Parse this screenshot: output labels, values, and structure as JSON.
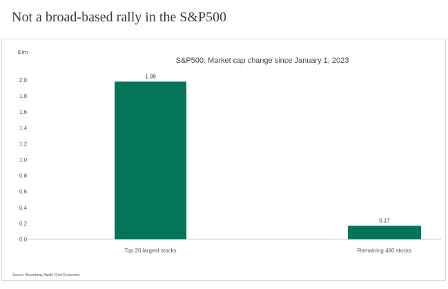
{
  "page": {
    "title": "Not a broad-based rally in the S&P500",
    "source": "Source: Bloomberg, Apollo Chief Economist."
  },
  "chart_data": {
    "type": "bar",
    "title": "S&P500: Market cap change since January 1, 2023",
    "ylabel": "$ trn",
    "xlabel": "",
    "categories": [
      "Top 20 largest stocks",
      "Remaining 480 stocks"
    ],
    "values": [
      1.98,
      0.17
    ],
    "data_labels": [
      "1.98",
      "0.17"
    ],
    "ylim": [
      0,
      2.0
    ],
    "yticks": [
      0.0,
      0.2,
      0.4,
      0.6,
      0.8,
      1.0,
      1.2,
      1.4,
      1.6,
      1.8,
      2.0
    ],
    "ytick_labels": [
      "0.0",
      "0.2",
      "0.4",
      "0.6",
      "0.8",
      "1.0",
      "1.2",
      "1.4",
      "1.6",
      "1.8",
      "2.0"
    ],
    "grid": false,
    "legend": "none",
    "bar_color": "#047559"
  }
}
